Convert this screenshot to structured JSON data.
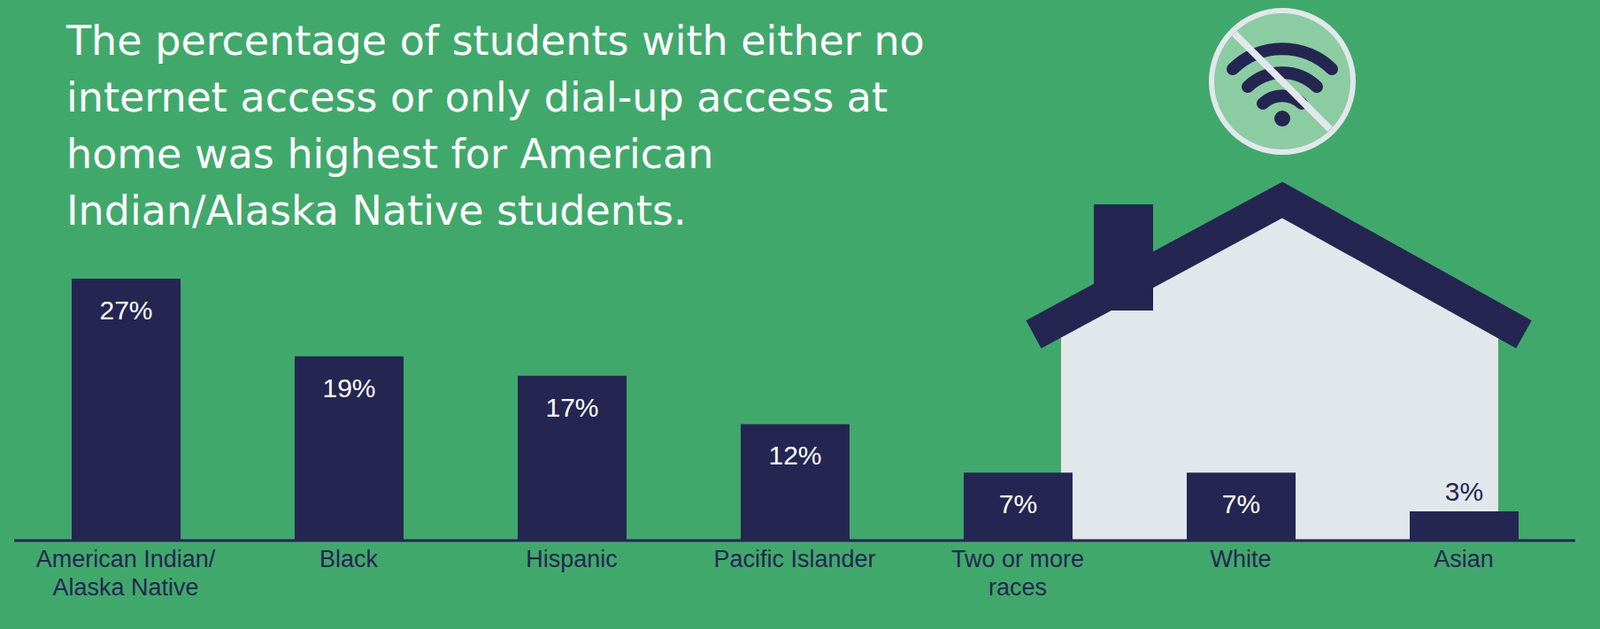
{
  "chart_data": {
    "type": "bar",
    "title": "The percentage of students with either no internet access or only dial-up access at home was highest for American Indian/Alaska Native students.",
    "categories": [
      "American Indian/ Alaska Native",
      "Black",
      "Hispanic",
      "Pacific Islander",
      "Two or more races",
      "White",
      "Asian"
    ],
    "values": [
      27,
      19,
      17,
      12,
      7,
      7,
      3
    ],
    "value_labels": [
      "27%",
      "19%",
      "17%",
      "12%",
      "7%",
      "7%",
      "3%"
    ],
    "color": "#242651",
    "ylim": [
      0,
      27
    ],
    "data_labels": true,
    "tick_labels": "x"
  }
}
